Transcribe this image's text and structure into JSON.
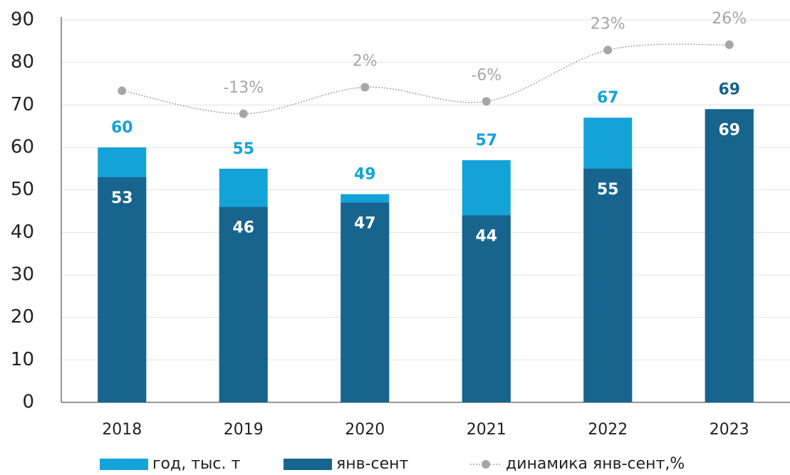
{
  "chart_data": {
    "type": "bar",
    "categories": [
      "2018",
      "2019",
      "2020",
      "2021",
      "2022",
      "2023"
    ],
    "series": [
      {
        "name": "год, тыс. т",
        "color": "#13a3d8",
        "values": [
          60,
          55,
          49,
          57,
          67,
          69
        ]
      },
      {
        "name": "янв-сент",
        "color": "#17648f",
        "values": [
          53,
          46,
          47,
          44,
          55,
          69
        ]
      },
      {
        "name": "динамика янв-сент,%",
        "type": "line",
        "axis": "y2",
        "color": "#a6a6a6",
        "values": [
          0,
          -13,
          2,
          -6,
          23,
          26
        ],
        "value_labels": [
          null,
          "-13%",
          "2%",
          "-6%",
          "23%",
          "26%"
        ]
      }
    ],
    "ylim": [
      0,
      90
    ],
    "yticks": [
      0,
      10,
      20,
      30,
      40,
      50,
      60,
      70,
      80,
      90
    ],
    "y2lim": [
      -176,
      40
    ],
    "grid": true,
    "legend": "bottom"
  }
}
